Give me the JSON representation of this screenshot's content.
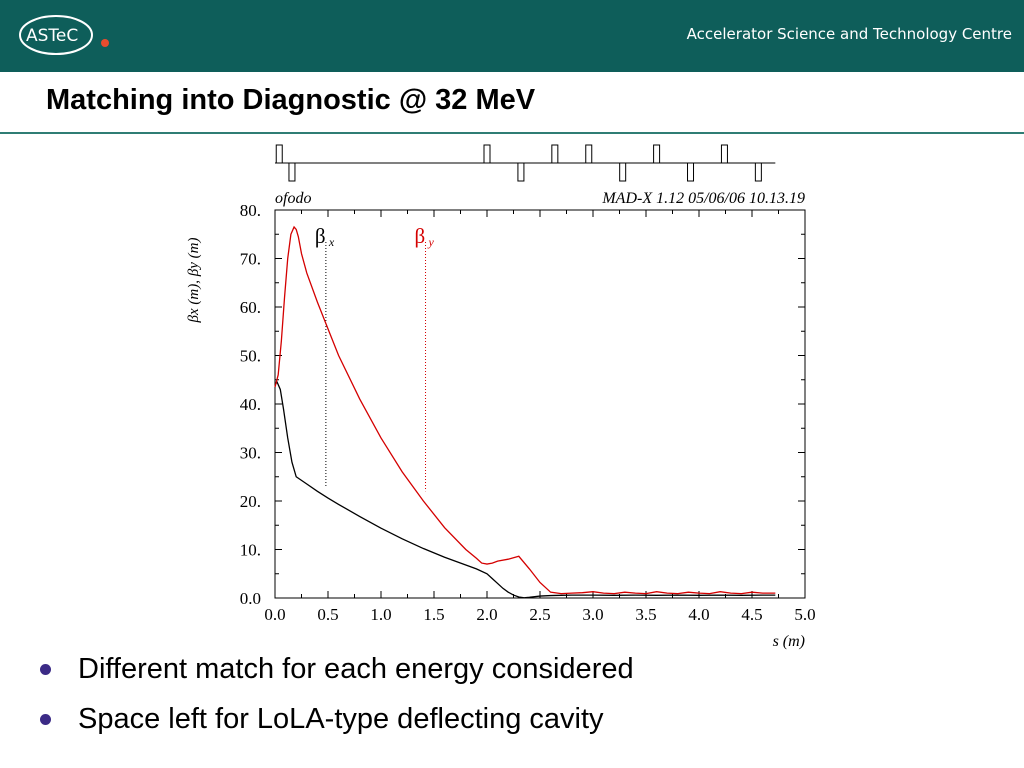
{
  "header": {
    "logo_text": "ASTeC",
    "org_name": "Accelerator Science and Technology Centre",
    "brand_color": "#0e5e5a",
    "logo_dot_color": "#e84c2e"
  },
  "slide": {
    "title": "Matching into Diagnostic @ 32 MeV",
    "rule_color": "#2f7d74",
    "bullet_color": "#3b2a86"
  },
  "bullets": [
    "Different match for each energy considered",
    "Space left for LoLA-type deflecting cavity"
  ],
  "chart_data": {
    "type": "line",
    "program_label": "ofodo",
    "header_right": "MAD-X 1.12  05/06/06 10.13.19",
    "ylabel": "βx (m), βy (m)",
    "xlabel": "s (m)",
    "xlim": [
      0,
      5
    ],
    "ylim": [
      0,
      80
    ],
    "x_ticks": [
      "0.0",
      "0.5",
      "1.0",
      "1.5",
      "2.0",
      "2.5",
      "3.0",
      "3.5",
      "4.0",
      "4.5",
      "5.0"
    ],
    "y_ticks": [
      "0.0",
      "10.",
      "20.",
      "30.",
      "40.",
      "50.",
      "60.",
      "70.",
      "80."
    ],
    "grid": false,
    "legend": [
      {
        "symbol": "β",
        "sub": "x",
        "color": "#000000",
        "marker_s": 0.48
      },
      {
        "symbol": "β",
        "sub": "y",
        "color": "#d40000",
        "marker_s": 1.42
      }
    ],
    "lattice": {
      "focusing": [
        0.04,
        2.0,
        2.64,
        2.96,
        3.6,
        4.24
      ],
      "defocusing": [
        0.16,
        2.32,
        3.28,
        3.92,
        4.56
      ],
      "line_end": 4.72
    },
    "series": [
      {
        "name": "βx",
        "color": "#000000",
        "x": [
          0.0,
          0.02,
          0.05,
          0.08,
          0.12,
          0.16,
          0.2,
          0.3,
          0.4,
          0.5,
          0.6,
          0.8,
          1.0,
          1.2,
          1.4,
          1.6,
          1.8,
          1.9,
          2.0,
          2.05,
          2.1,
          2.15,
          2.2,
          2.25,
          2.3,
          2.35,
          2.4,
          2.5,
          2.6,
          2.7,
          2.8,
          2.9,
          3.0,
          3.2,
          3.4,
          3.6,
          3.8,
          4.0,
          4.2,
          4.4,
          4.6,
          4.72
        ],
        "y": [
          44.0,
          44.5,
          43.0,
          39.0,
          33.0,
          28.0,
          25.0,
          23.5,
          22.0,
          20.6,
          19.3,
          16.8,
          14.4,
          12.2,
          10.2,
          8.4,
          6.8,
          6.0,
          5.0,
          4.0,
          3.0,
          2.0,
          1.2,
          0.6,
          0.2,
          0.05,
          0.15,
          0.4,
          0.5,
          0.55,
          0.6,
          0.6,
          0.6,
          0.55,
          0.6,
          0.55,
          0.6,
          0.55,
          0.6,
          0.55,
          0.6,
          0.6
        ]
      },
      {
        "name": "βy",
        "color": "#d40000",
        "x": [
          0.0,
          0.03,
          0.06,
          0.09,
          0.12,
          0.15,
          0.18,
          0.2,
          0.22,
          0.25,
          0.3,
          0.4,
          0.5,
          0.6,
          0.8,
          1.0,
          1.2,
          1.4,
          1.6,
          1.8,
          1.9,
          1.95,
          2.0,
          2.05,
          2.1,
          2.2,
          2.3,
          2.4,
          2.5,
          2.6,
          2.7,
          2.8,
          2.9,
          3.0,
          3.1,
          3.2,
          3.3,
          3.4,
          3.5,
          3.6,
          3.7,
          3.8,
          3.9,
          4.0,
          4.1,
          4.2,
          4.3,
          4.4,
          4.5,
          4.6,
          4.72
        ],
        "y": [
          43.5,
          46.0,
          53.0,
          62.0,
          70.0,
          75.0,
          76.5,
          76.0,
          74.5,
          71.0,
          67.0,
          61.0,
          55.5,
          50.0,
          41.0,
          33.0,
          26.0,
          20.0,
          14.5,
          10.0,
          8.2,
          7.2,
          7.0,
          7.2,
          7.6,
          8.0,
          8.6,
          6.0,
          3.2,
          1.2,
          0.9,
          1.0,
          1.1,
          1.3,
          1.0,
          0.9,
          1.2,
          1.0,
          0.9,
          1.3,
          1.0,
          0.9,
          1.2,
          1.0,
          0.9,
          1.3,
          1.0,
          0.9,
          1.2,
          1.0,
          1.0
        ]
      }
    ]
  }
}
